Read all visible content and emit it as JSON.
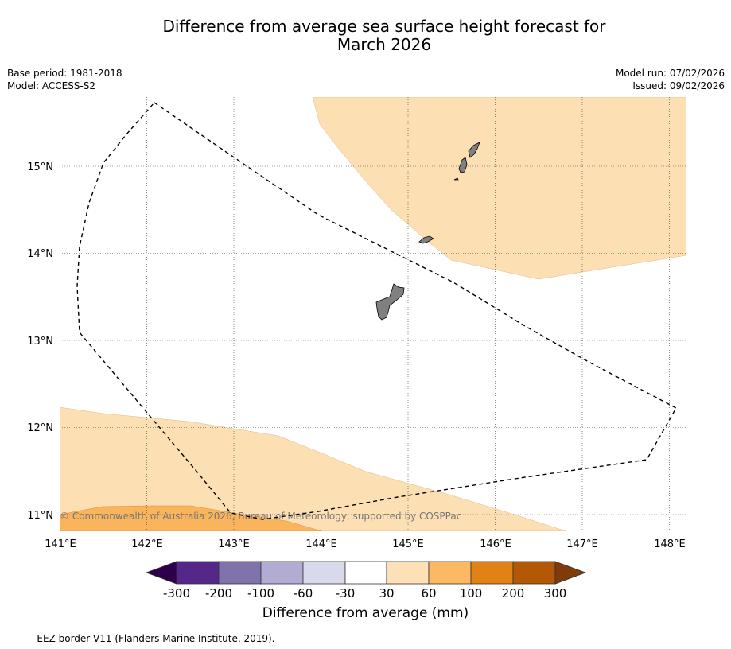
{
  "title": {
    "line1": "Difference from average sea surface height forecast for",
    "line2": "March 2026"
  },
  "meta": {
    "base_period": "Base period: 1981-2018",
    "model": "Model: ACCESS-S2",
    "model_run": "Model run: 07/02/2026",
    "issued": "Issued: 09/02/2026"
  },
  "map": {
    "lon_range": [
      141.0,
      148.2
    ],
    "lat_range": [
      10.8,
      15.8
    ],
    "lon_ticks": [
      {
        "value": 141,
        "label": "141°E"
      },
      {
        "value": 142,
        "label": "142°E"
      },
      {
        "value": 143,
        "label": "143°E"
      },
      {
        "value": 144,
        "label": "144°E"
      },
      {
        "value": 145,
        "label": "145°E"
      },
      {
        "value": 146,
        "label": "146°E"
      },
      {
        "value": 147,
        "label": "147°E"
      },
      {
        "value": 148,
        "label": "148°E"
      }
    ],
    "lat_ticks": [
      {
        "value": 11,
        "label": "11°N"
      },
      {
        "value": 12,
        "label": "12°N"
      },
      {
        "value": 13,
        "label": "13°N"
      },
      {
        "value": 14,
        "label": "14°N"
      },
      {
        "value": 15,
        "label": "15°N"
      }
    ],
    "copyright": "© Commonwealth of Australia 2026, Bureau of Meteorology, supported by COSPPac",
    "colors": {
      "band_30_60": "#fcdfb3",
      "band_60_100": "#f9b45c",
      "land": "#808080",
      "eez_line": "#000000"
    }
  },
  "colorbar": {
    "title": "Difference from average (mm)",
    "tick_labels": [
      "-300",
      "-200",
      "-100",
      "-60",
      "-30",
      "30",
      "60",
      "100",
      "200",
      "300"
    ],
    "colors": [
      "#2d004b",
      "#542788",
      "#8073ac",
      "#b2abd2",
      "#d8daeb",
      "#ffffff",
      "#fee0b6",
      "#fdb863",
      "#e08214",
      "#b35806",
      "#7f3b08"
    ]
  },
  "footer": {
    "eez_legend": "--  --  -- EEZ border V11 (Flanders Marine Institute, 2019)."
  }
}
